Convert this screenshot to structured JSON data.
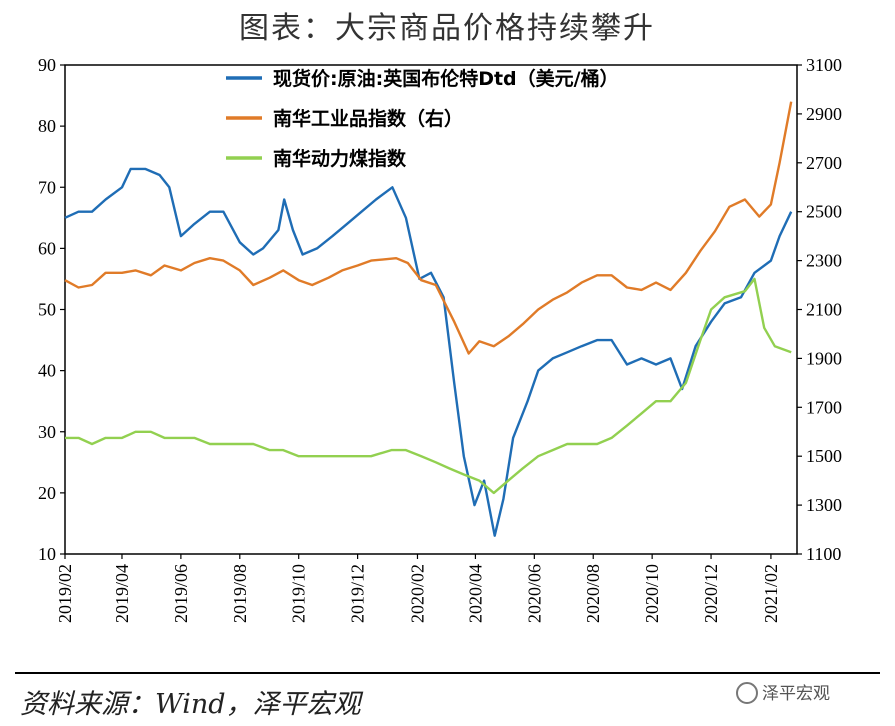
{
  "chart_data": {
    "type": "line",
    "title": "图表：大宗商品价格持续攀升",
    "source": "资料来源：Wind，泽平宏观",
    "watermark": "泽平宏观",
    "x_ticks": [
      "2019/02",
      "2019/04",
      "2019/06",
      "2019/08",
      "2019/10",
      "2019/12",
      "2020/02",
      "2020/04",
      "2020/06",
      "2020/08",
      "2020/10",
      "2020/12",
      "2021/02"
    ],
    "y_left": {
      "min": 10,
      "max": 90,
      "ticks": [
        10,
        20,
        30,
        40,
        50,
        60,
        70,
        80,
        90
      ]
    },
    "y_right": {
      "min": 1100,
      "max": 3100,
      "ticks": [
        1100,
        1300,
        1500,
        1700,
        1900,
        2100,
        2300,
        2500,
        2700,
        2900,
        3100
      ]
    },
    "grid": false,
    "legend_position": "top",
    "series": [
      {
        "name": "现货价:原油:英国布伦特Dtd（美元/桶）",
        "axis": "left",
        "color": "#1f6db5",
        "points": [
          [
            "2019-02-01",
            65
          ],
          [
            "2019-02-15",
            66
          ],
          [
            "2019-03-01",
            66
          ],
          [
            "2019-03-15",
            68
          ],
          [
            "2019-04-01",
            70
          ],
          [
            "2019-04-10",
            73
          ],
          [
            "2019-04-25",
            73
          ],
          [
            "2019-05-10",
            72
          ],
          [
            "2019-05-20",
            70
          ],
          [
            "2019-06-01",
            62
          ],
          [
            "2019-06-15",
            64
          ],
          [
            "2019-07-01",
            66
          ],
          [
            "2019-07-15",
            66
          ],
          [
            "2019-08-01",
            61
          ],
          [
            "2019-08-15",
            59
          ],
          [
            "2019-08-25",
            60
          ],
          [
            "2019-09-10",
            63
          ],
          [
            "2019-09-16",
            68
          ],
          [
            "2019-09-25",
            63
          ],
          [
            "2019-10-05",
            59
          ],
          [
            "2019-10-20",
            60
          ],
          [
            "2019-11-05",
            62
          ],
          [
            "2019-11-20",
            64
          ],
          [
            "2019-12-05",
            66
          ],
          [
            "2019-12-20",
            68
          ],
          [
            "2020-01-06",
            70
          ],
          [
            "2020-01-20",
            65
          ],
          [
            "2020-02-03",
            55
          ],
          [
            "2020-02-15",
            56
          ],
          [
            "2020-02-28",
            52
          ],
          [
            "2020-03-10",
            38
          ],
          [
            "2020-03-20",
            26
          ],
          [
            "2020-03-31",
            18
          ],
          [
            "2020-04-10",
            22
          ],
          [
            "2020-04-21",
            13
          ],
          [
            "2020-04-30",
            19
          ],
          [
            "2020-05-10",
            29
          ],
          [
            "2020-05-25",
            35
          ],
          [
            "2020-06-05",
            40
          ],
          [
            "2020-06-20",
            42
          ],
          [
            "2020-07-05",
            43
          ],
          [
            "2020-07-20",
            44
          ],
          [
            "2020-08-05",
            45
          ],
          [
            "2020-08-20",
            45
          ],
          [
            "2020-09-05",
            41
          ],
          [
            "2020-09-20",
            42
          ],
          [
            "2020-10-05",
            41
          ],
          [
            "2020-10-20",
            42
          ],
          [
            "2020-11-01",
            37
          ],
          [
            "2020-11-15",
            44
          ],
          [
            "2020-12-01",
            48
          ],
          [
            "2020-12-15",
            51
          ],
          [
            "2021-01-01",
            52
          ],
          [
            "2021-01-15",
            56
          ],
          [
            "2021-02-01",
            58
          ],
          [
            "2021-02-10",
            62
          ],
          [
            "2021-02-22",
            66
          ]
        ]
      },
      {
        "name": "南华工业品指数（右）",
        "axis": "right",
        "color": "#e07b28",
        "points": [
          [
            "2019-02-01",
            2220
          ],
          [
            "2019-02-15",
            2190
          ],
          [
            "2019-03-01",
            2200
          ],
          [
            "2019-03-15",
            2250
          ],
          [
            "2019-04-01",
            2250
          ],
          [
            "2019-04-15",
            2260
          ],
          [
            "2019-05-01",
            2240
          ],
          [
            "2019-05-15",
            2280
          ],
          [
            "2019-06-01",
            2260
          ],
          [
            "2019-06-15",
            2290
          ],
          [
            "2019-07-01",
            2310
          ],
          [
            "2019-07-15",
            2300
          ],
          [
            "2019-08-01",
            2260
          ],
          [
            "2019-08-15",
            2200
          ],
          [
            "2019-09-01",
            2230
          ],
          [
            "2019-09-15",
            2260
          ],
          [
            "2019-10-01",
            2220
          ],
          [
            "2019-10-15",
            2200
          ],
          [
            "2019-11-01",
            2230
          ],
          [
            "2019-11-15",
            2260
          ],
          [
            "2019-12-01",
            2280
          ],
          [
            "2019-12-15",
            2300
          ],
          [
            "2020-01-10",
            2310
          ],
          [
            "2020-01-22",
            2290
          ],
          [
            "2020-02-05",
            2220
          ],
          [
            "2020-02-20",
            2200
          ],
          [
            "2020-03-10",
            2050
          ],
          [
            "2020-03-25",
            1920
          ],
          [
            "2020-04-05",
            1970
          ],
          [
            "2020-04-20",
            1950
          ],
          [
            "2020-05-05",
            1990
          ],
          [
            "2020-05-20",
            2040
          ],
          [
            "2020-06-05",
            2100
          ],
          [
            "2020-06-20",
            2140
          ],
          [
            "2020-07-05",
            2170
          ],
          [
            "2020-07-20",
            2210
          ],
          [
            "2020-08-05",
            2240
          ],
          [
            "2020-08-20",
            2240
          ],
          [
            "2020-09-05",
            2190
          ],
          [
            "2020-09-20",
            2180
          ],
          [
            "2020-10-05",
            2210
          ],
          [
            "2020-10-20",
            2180
          ],
          [
            "2020-11-05",
            2250
          ],
          [
            "2020-11-20",
            2340
          ],
          [
            "2020-12-05",
            2420
          ],
          [
            "2020-12-20",
            2520
          ],
          [
            "2021-01-05",
            2550
          ],
          [
            "2021-01-20",
            2480
          ],
          [
            "2021-02-01",
            2530
          ],
          [
            "2021-02-10",
            2700
          ],
          [
            "2021-02-22",
            2950
          ]
        ]
      },
      {
        "name": "南华动力煤指数",
        "axis": "left",
        "color": "#92d050",
        "points": [
          [
            "2019-02-01",
            29
          ],
          [
            "2019-02-15",
            29
          ],
          [
            "2019-03-01",
            28
          ],
          [
            "2019-03-15",
            29
          ],
          [
            "2019-04-01",
            29
          ],
          [
            "2019-04-15",
            30
          ],
          [
            "2019-05-01",
            30
          ],
          [
            "2019-05-15",
            29
          ],
          [
            "2019-06-01",
            29
          ],
          [
            "2019-06-15",
            29
          ],
          [
            "2019-07-01",
            28
          ],
          [
            "2019-07-15",
            28
          ],
          [
            "2019-08-01",
            28
          ],
          [
            "2019-08-15",
            28
          ],
          [
            "2019-09-01",
            27
          ],
          [
            "2019-09-15",
            27
          ],
          [
            "2019-10-01",
            26
          ],
          [
            "2019-10-15",
            26
          ],
          [
            "2019-11-01",
            26
          ],
          [
            "2019-11-15",
            26
          ],
          [
            "2019-12-01",
            26
          ],
          [
            "2019-12-15",
            26
          ],
          [
            "2020-01-05",
            27
          ],
          [
            "2020-01-20",
            27
          ],
          [
            "2020-02-05",
            26
          ],
          [
            "2020-02-20",
            25
          ],
          [
            "2020-03-05",
            24
          ],
          [
            "2020-03-20",
            23
          ],
          [
            "2020-04-05",
            22
          ],
          [
            "2020-04-20",
            20
          ],
          [
            "2020-05-05",
            22
          ],
          [
            "2020-05-20",
            24
          ],
          [
            "2020-06-05",
            26
          ],
          [
            "2020-06-20",
            27
          ],
          [
            "2020-07-05",
            28
          ],
          [
            "2020-07-20",
            28
          ],
          [
            "2020-08-05",
            28
          ],
          [
            "2020-08-20",
            29
          ],
          [
            "2020-09-05",
            31
          ],
          [
            "2020-09-20",
            33
          ],
          [
            "2020-10-05",
            35
          ],
          [
            "2020-10-20",
            35
          ],
          [
            "2020-11-05",
            38
          ],
          [
            "2020-11-20",
            45
          ],
          [
            "2020-12-01",
            50
          ],
          [
            "2020-12-15",
            52
          ],
          [
            "2021-01-05",
            53
          ],
          [
            "2021-01-15",
            55
          ],
          [
            "2021-01-25",
            47
          ],
          [
            "2021-02-05",
            44
          ],
          [
            "2021-02-22",
            43
          ]
        ]
      }
    ]
  }
}
